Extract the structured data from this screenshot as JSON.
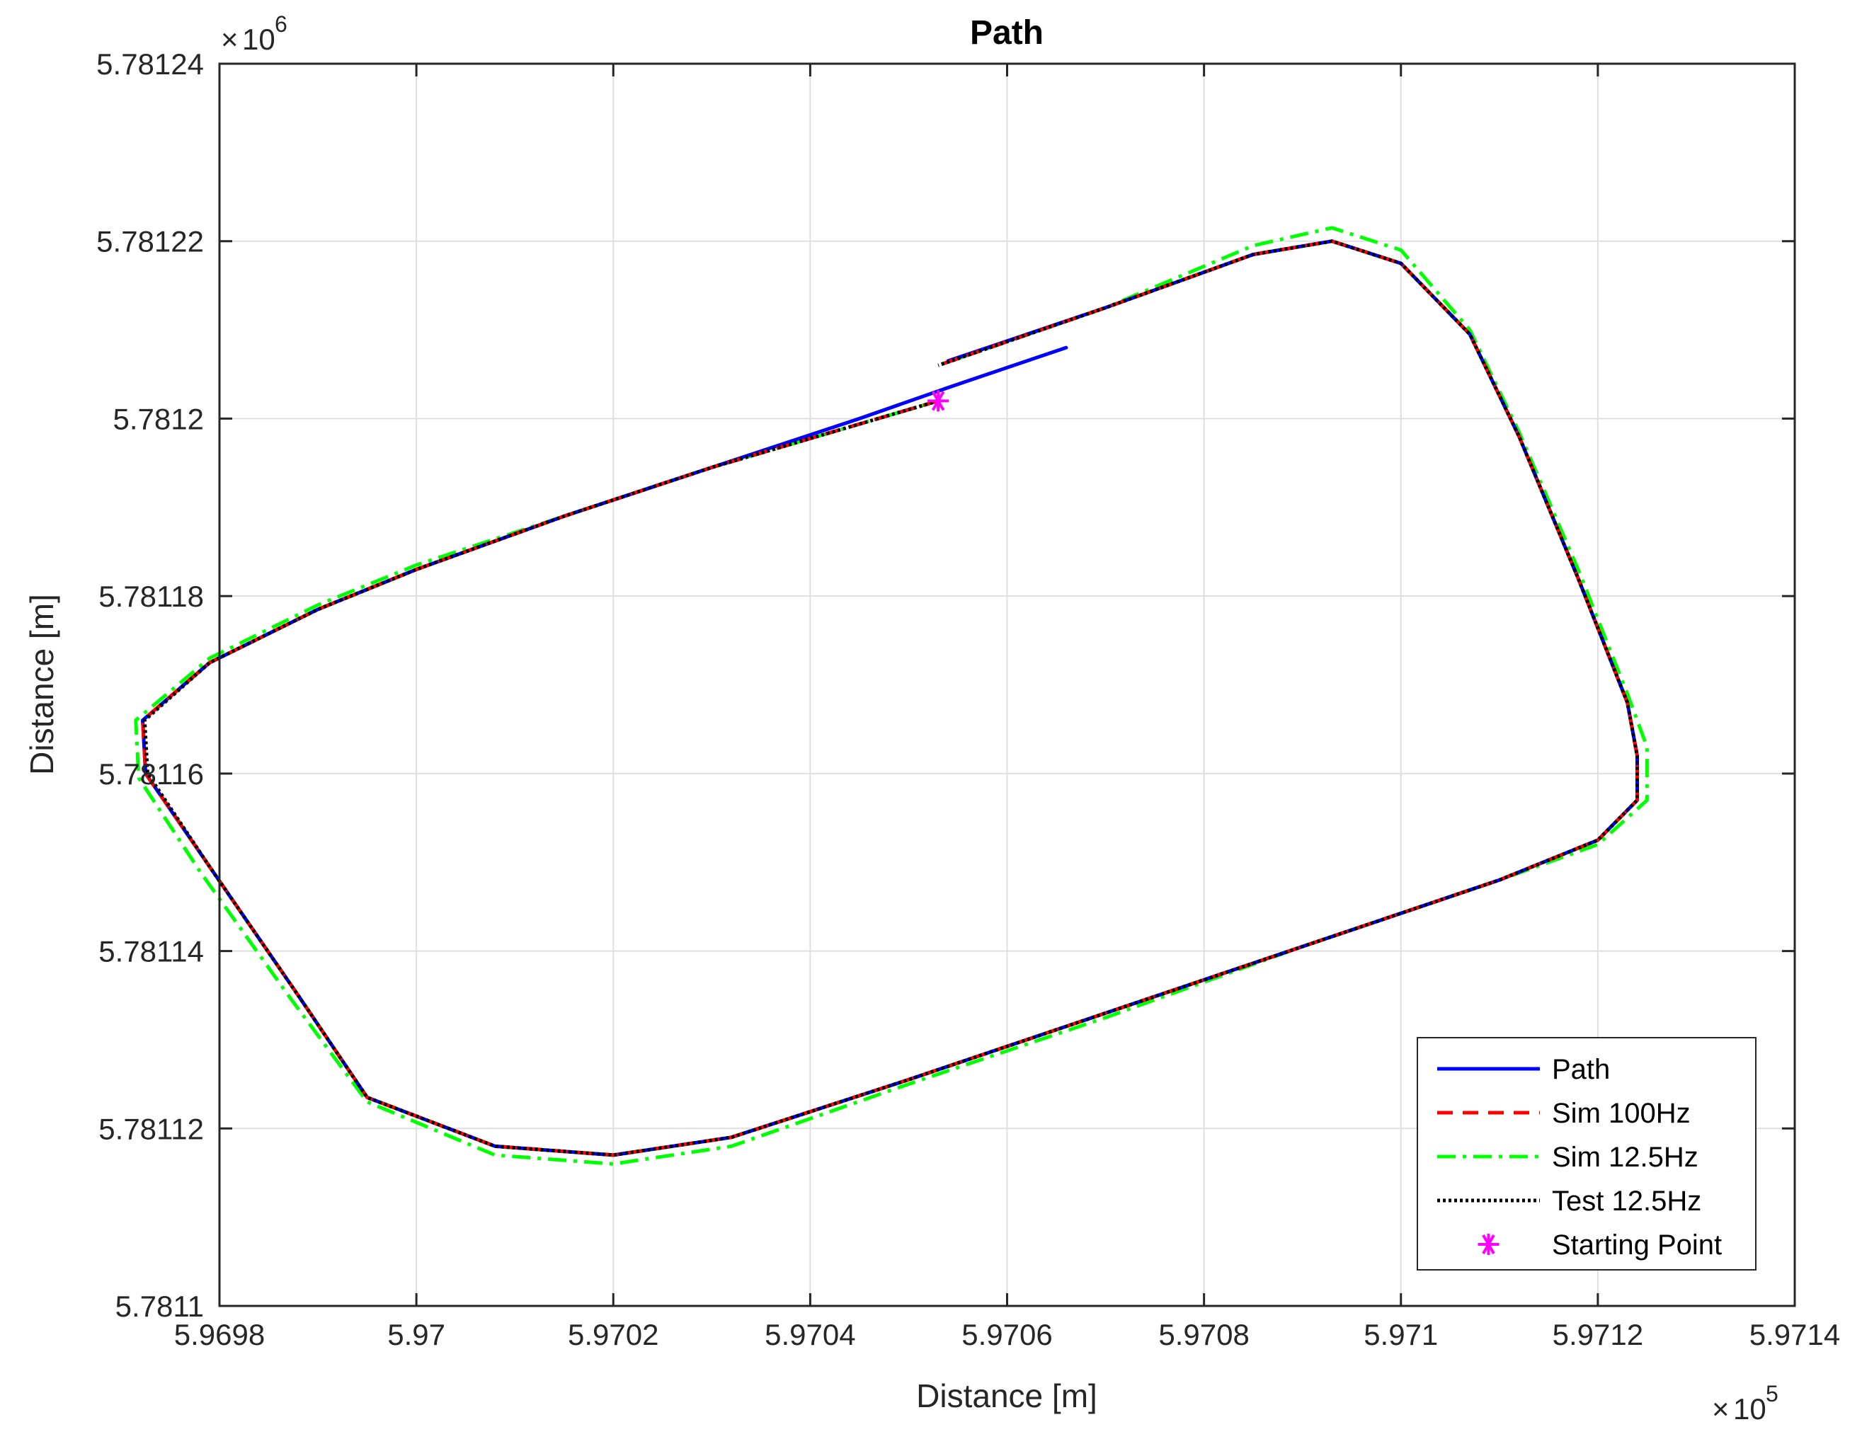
{
  "chart_data": {
    "type": "line",
    "title": "Path",
    "xlabel": "Distance [m]",
    "ylabel": "Distance [m]",
    "x_exponent": "10",
    "x_exponent_power": "5",
    "y_exponent": "10",
    "y_exponent_power": "6",
    "times_symbol": "×",
    "xlim": [
      5.9698,
      5.9714
    ],
    "ylim": [
      5.7811,
      5.78124
    ],
    "x_ticks": [
      5.9698,
      5.97,
      5.9702,
      5.9704,
      5.9706,
      5.9708,
      5.971,
      5.9712,
      5.9714
    ],
    "x_tick_labels": [
      "5.9698",
      "5.97",
      "5.9702",
      "5.9704",
      "5.9706",
      "5.9708",
      "5.971",
      "5.9712",
      "5.9714"
    ],
    "y_ticks": [
      5.7811,
      5.78112,
      5.78114,
      5.78116,
      5.78118,
      5.7812,
      5.78122,
      5.78124
    ],
    "y_tick_labels": [
      "5.7811",
      "5.78112",
      "5.78114",
      "5.78116",
      "5.78118",
      "5.7812",
      "5.78122",
      "5.78124"
    ],
    "grid": true,
    "legend_position": "bottom-right",
    "series": [
      {
        "name": "Path",
        "color": "#0000ff",
        "style": "solid",
        "points": [
          [
            5.97066,
            5.781208
          ],
          [
            5.97054,
            5.7812035
          ],
          [
            5.97045,
            5.7812
          ],
          [
            5.9703,
            5.7811945
          ],
          [
            5.97015,
            5.781189
          ],
          [
            5.97,
            5.781183
          ],
          [
            5.9699,
            5.7811785
          ],
          [
            5.96979,
            5.7811725
          ],
          [
            5.969722,
            5.781166
          ],
          [
            5.969725,
            5.78116
          ],
          [
            5.96979,
            5.7811495
          ],
          [
            5.96988,
            5.781135
          ],
          [
            5.96995,
            5.7811235
          ],
          [
            5.97008,
            5.781118
          ],
          [
            5.9702,
            5.781117
          ],
          [
            5.97032,
            5.781119
          ],
          [
            5.9705,
            5.7811255
          ],
          [
            5.9707,
            5.781133
          ],
          [
            5.9709,
            5.7811405
          ],
          [
            5.9711,
            5.781148
          ],
          [
            5.9712,
            5.7811525
          ],
          [
            5.97124,
            5.781157
          ],
          [
            5.97124,
            5.781162
          ],
          [
            5.97123,
            5.781168
          ],
          [
            5.97118,
            5.781182
          ],
          [
            5.97112,
            5.781198
          ],
          [
            5.97107,
            5.7812095
          ],
          [
            5.971,
            5.7812175
          ],
          [
            5.97093,
            5.78122
          ],
          [
            5.97085,
            5.7812185
          ],
          [
            5.9707,
            5.7812125
          ],
          [
            5.97054,
            5.7812065
          ]
        ]
      },
      {
        "name": "Sim 100Hz",
        "color": "#ff0000",
        "style": "dashed",
        "points": [
          [
            5.97053,
            5.781202
          ],
          [
            5.9703,
            5.7811945
          ],
          [
            5.97015,
            5.781189
          ],
          [
            5.97,
            5.781183
          ],
          [
            5.9699,
            5.7811785
          ],
          [
            5.96979,
            5.7811725
          ],
          [
            5.969722,
            5.781166
          ],
          [
            5.969725,
            5.78116
          ],
          [
            5.96979,
            5.7811495
          ],
          [
            5.96988,
            5.781135
          ],
          [
            5.96995,
            5.7811235
          ],
          [
            5.97008,
            5.781118
          ],
          [
            5.9702,
            5.781117
          ],
          [
            5.97032,
            5.781119
          ],
          [
            5.9705,
            5.7811255
          ],
          [
            5.9707,
            5.781133
          ],
          [
            5.9709,
            5.7811405
          ],
          [
            5.9711,
            5.781148
          ],
          [
            5.9712,
            5.7811525
          ],
          [
            5.97124,
            5.781157
          ],
          [
            5.97124,
            5.781162
          ],
          [
            5.97123,
            5.781168
          ],
          [
            5.97118,
            5.781182
          ],
          [
            5.97112,
            5.781198
          ],
          [
            5.97107,
            5.7812095
          ],
          [
            5.971,
            5.7812175
          ],
          [
            5.97093,
            5.78122
          ],
          [
            5.97085,
            5.7812185
          ],
          [
            5.9707,
            5.7812125
          ],
          [
            5.97053,
            5.781206
          ]
        ]
      },
      {
        "name": "Sim 12.5Hz",
        "color": "#00ff00",
        "style": "dashdot",
        "points": [
          [
            5.97053,
            5.781202
          ],
          [
            5.9703,
            5.7811945
          ],
          [
            5.97015,
            5.781189
          ],
          [
            5.97,
            5.7811835
          ],
          [
            5.9699,
            5.781179
          ],
          [
            5.96979,
            5.781173
          ],
          [
            5.969715,
            5.781166
          ],
          [
            5.969718,
            5.7811595
          ],
          [
            5.96978,
            5.781149
          ],
          [
            5.96987,
            5.781135
          ],
          [
            5.96995,
            5.781123
          ],
          [
            5.97008,
            5.781117
          ],
          [
            5.9702,
            5.781116
          ],
          [
            5.97032,
            5.781118
          ],
          [
            5.9705,
            5.781125
          ],
          [
            5.9707,
            5.7811325
          ],
          [
            5.9709,
            5.7811405
          ],
          [
            5.9711,
            5.781148
          ],
          [
            5.9712,
            5.781152
          ],
          [
            5.97125,
            5.781157
          ],
          [
            5.97125,
            5.781163
          ],
          [
            5.97123,
            5.781169
          ],
          [
            5.97118,
            5.781183
          ],
          [
            5.97112,
            5.7811985
          ],
          [
            5.97107,
            5.78121
          ],
          [
            5.971,
            5.781219
          ],
          [
            5.97093,
            5.7812215
          ],
          [
            5.97085,
            5.7812195
          ],
          [
            5.9707,
            5.7812125
          ],
          [
            5.97053,
            5.781206
          ]
        ]
      },
      {
        "name": "Test 12.5Hz",
        "color": "#000000",
        "style": "dotted",
        "points": [
          [
            5.97053,
            5.781202
          ],
          [
            5.9703,
            5.7811945
          ],
          [
            5.97015,
            5.781189
          ],
          [
            5.97,
            5.781183
          ],
          [
            5.9699,
            5.7811785
          ],
          [
            5.96979,
            5.7811725
          ],
          [
            5.969724,
            5.781166
          ],
          [
            5.969727,
            5.78116
          ],
          [
            5.96979,
            5.7811495
          ],
          [
            5.96988,
            5.781135
          ],
          [
            5.96995,
            5.7811235
          ],
          [
            5.97008,
            5.781118
          ],
          [
            5.9702,
            5.781117
          ],
          [
            5.97032,
            5.781119
          ],
          [
            5.9705,
            5.7811255
          ],
          [
            5.9707,
            5.781133
          ],
          [
            5.9709,
            5.7811405
          ],
          [
            5.9711,
            5.781148
          ],
          [
            5.9712,
            5.7811525
          ],
          [
            5.97124,
            5.781157
          ],
          [
            5.97124,
            5.781162
          ],
          [
            5.97123,
            5.781168
          ],
          [
            5.97118,
            5.781182
          ],
          [
            5.97112,
            5.781198
          ],
          [
            5.97107,
            5.7812095
          ],
          [
            5.971,
            5.7812175
          ],
          [
            5.97093,
            5.78122
          ],
          [
            5.97085,
            5.7812185
          ],
          [
            5.9707,
            5.7812125
          ],
          [
            5.97053,
            5.781206
          ]
        ]
      }
    ],
    "markers": [
      {
        "name": "Starting Point",
        "color": "#ff00ff",
        "symbol": "*",
        "x": 5.97053,
        "y": 5.781202
      }
    ]
  }
}
